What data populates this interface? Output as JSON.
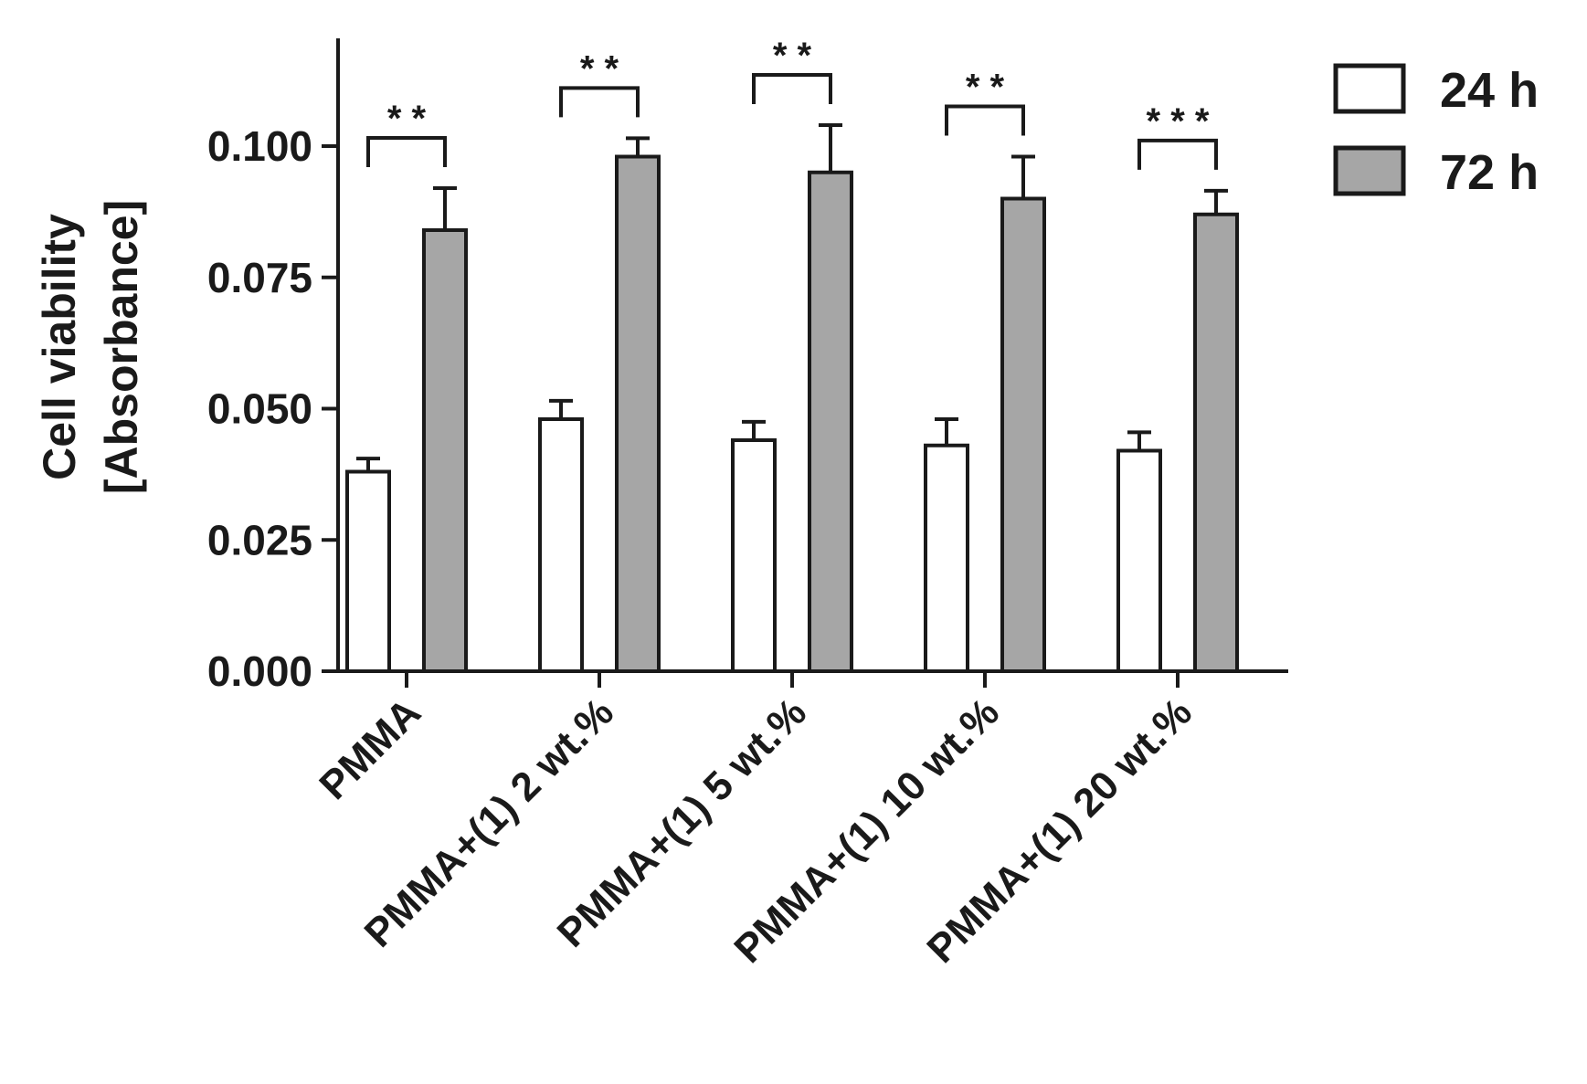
{
  "chart_data": {
    "type": "bar",
    "ylabel_lines": [
      "Cell viability",
      "[Absorbance]"
    ],
    "categories": [
      "PMMA",
      "PMMA+(1) 2 wt.%",
      "PMMA+(1) 5 wt.%",
      "PMMA+(1) 10 wt.%",
      "PMMA+(1) 20 wt.%"
    ],
    "series": [
      {
        "name": "24 h",
        "color": "#ffffff",
        "values": [
          0.038,
          0.048,
          0.044,
          0.043,
          0.042
        ],
        "errors": [
          0.0025,
          0.0035,
          0.0035,
          0.005,
          0.0035
        ]
      },
      {
        "name": "72 h",
        "color": "#a6a6a6",
        "values": [
          0.084,
          0.098,
          0.095,
          0.09,
          0.087
        ],
        "errors": [
          0.008,
          0.0035,
          0.009,
          0.008,
          0.0045
        ]
      }
    ],
    "significance": [
      "* *",
      "* *",
      "* *",
      "* *",
      "* * *"
    ],
    "yticks": [
      "0.000",
      "0.025",
      "0.050",
      "0.075",
      "0.100"
    ],
    "ytick_values": [
      0,
      0.025,
      0.05,
      0.075,
      0.1
    ],
    "ylim": [
      0,
      0.12
    ],
    "legend_position": "top-right",
    "grid": false
  }
}
